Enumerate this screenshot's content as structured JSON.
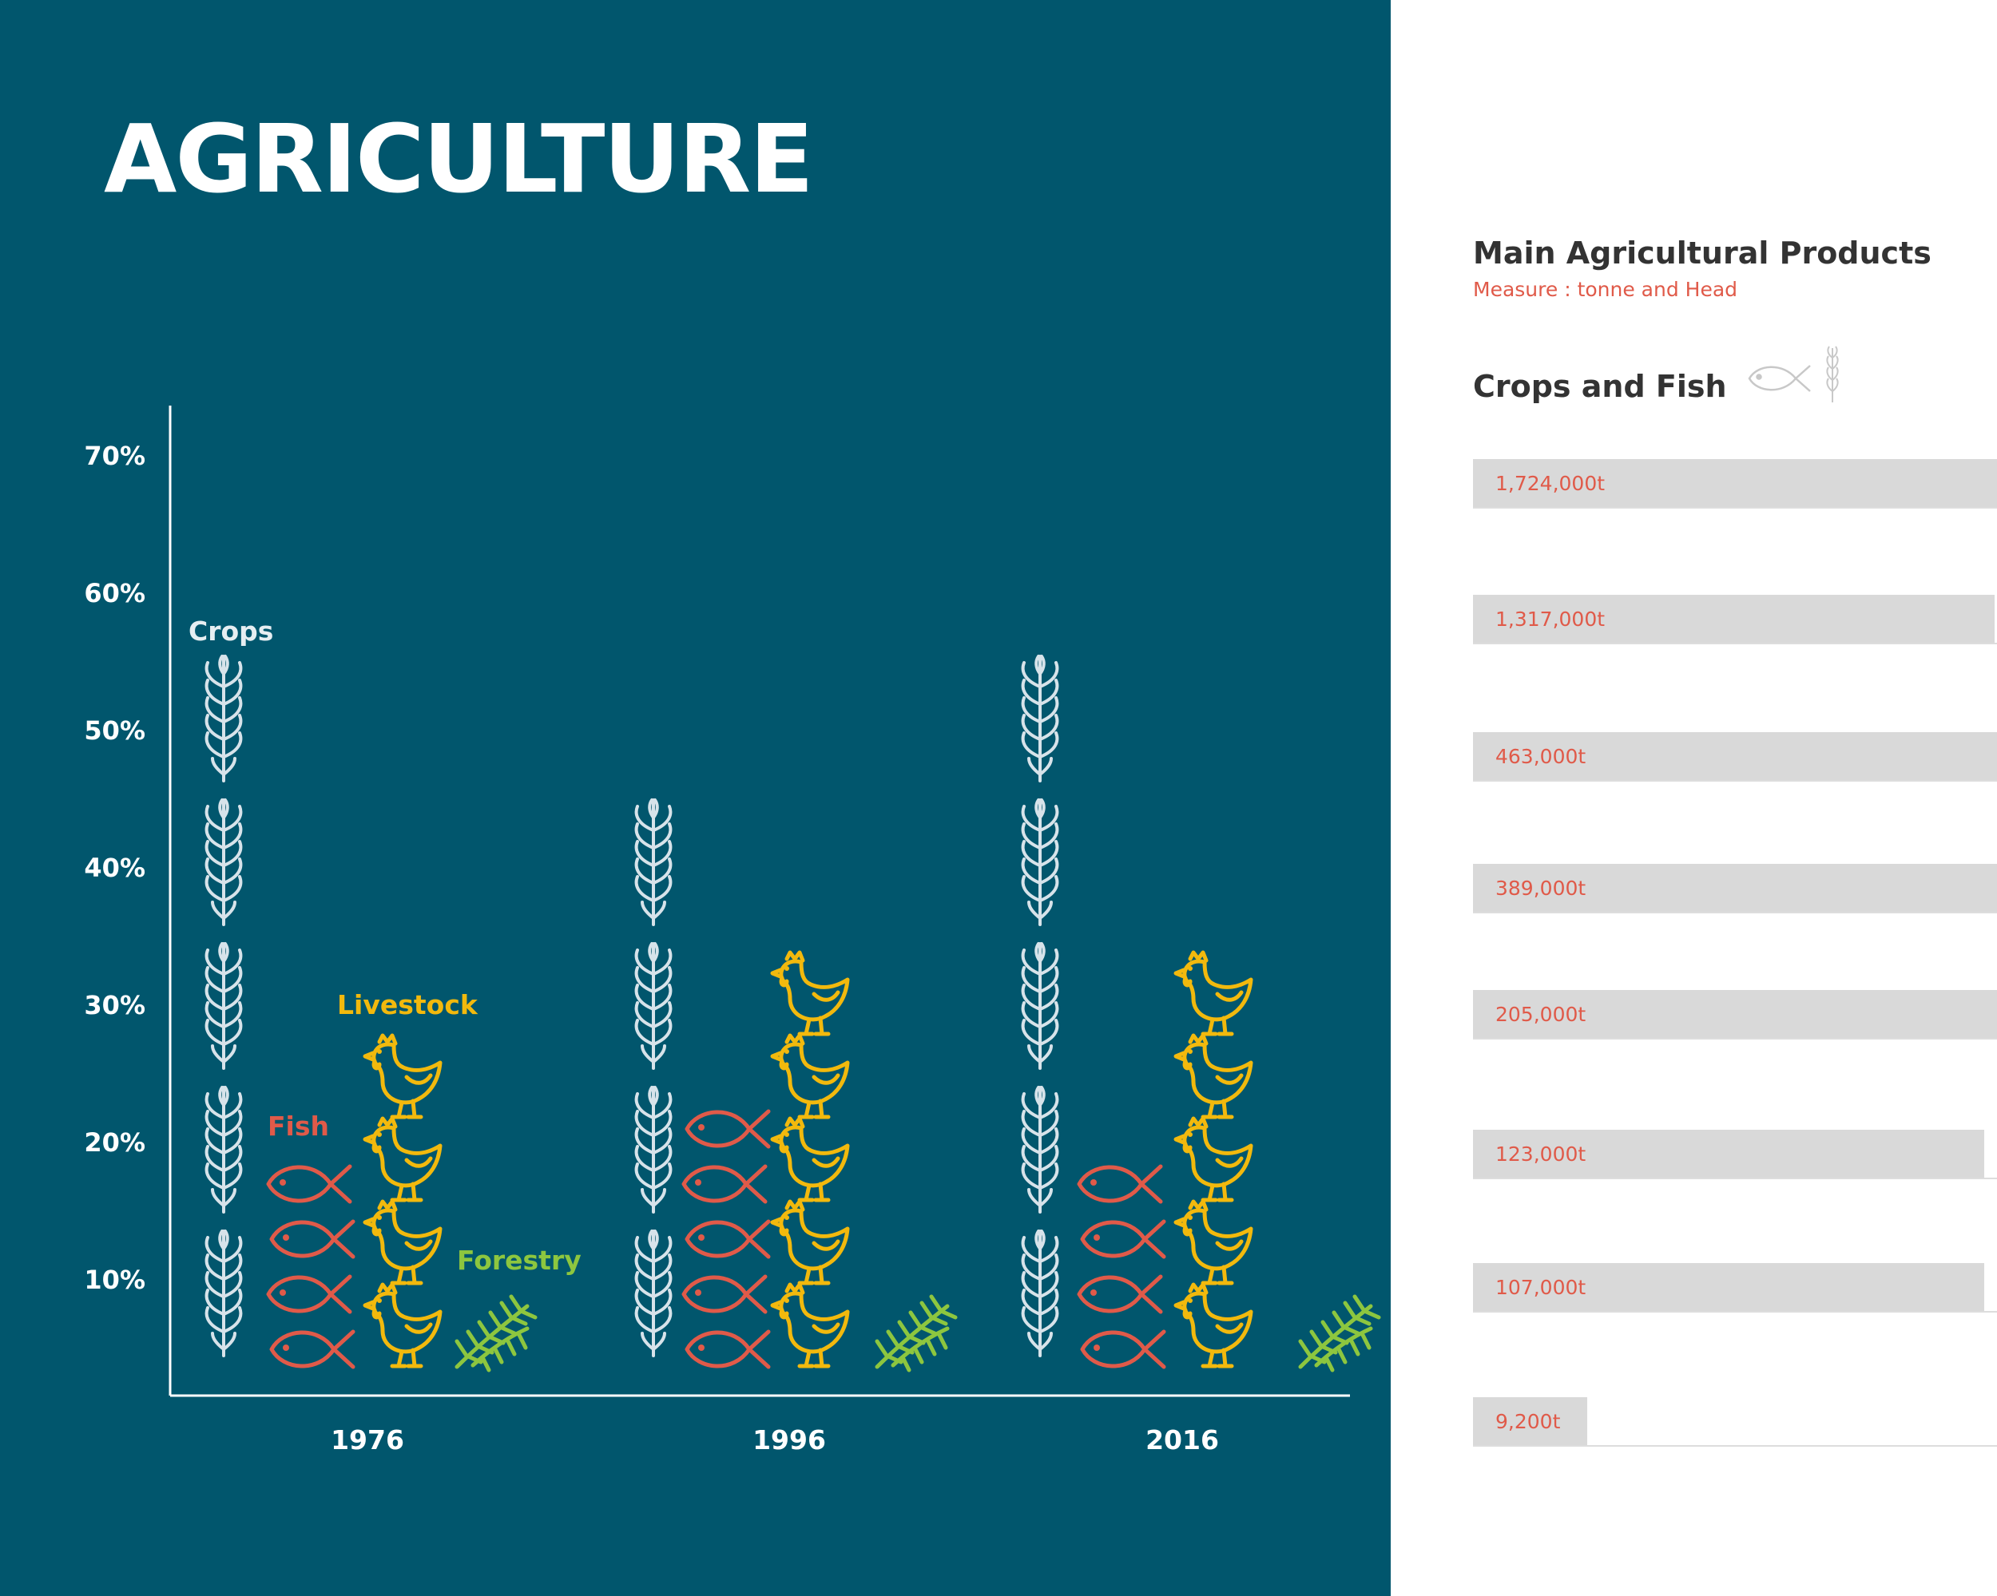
{
  "title": "AGRICULTURE",
  "colors": {
    "background": "#01566d",
    "crops": "#d7e3ea",
    "fish": "#e05a49",
    "livestock": "#f2b90d",
    "forestry": "#8dc63f",
    "axis": "#ffffff"
  },
  "chart_data": {
    "type": "bar",
    "style": "pictogram",
    "categories": [
      "1976",
      "1996",
      "2016"
    ],
    "y_ticks": [
      "10%",
      "20%",
      "30%",
      "40%",
      "50%",
      "60%",
      "70%"
    ],
    "ylim": [
      0,
      70
    ],
    "series": [
      {
        "name": "Crops",
        "icon": "wheat-icon",
        "values": [
          50,
          40,
          50
        ]
      },
      {
        "name": "Fish",
        "icon": "fish-icon",
        "values": [
          20,
          25,
          20
        ]
      },
      {
        "name": "Livestock",
        "icon": "chicken-icon",
        "values": [
          25,
          30,
          30
        ]
      },
      {
        "name": "Forestry",
        "icon": "forestry-icon",
        "values": [
          5,
          5,
          5
        ]
      }
    ],
    "icon_counts": {
      "Crops": [
        5,
        4,
        5
      ],
      "Fish": [
        4,
        5,
        4
      ],
      "Livestock": [
        4,
        5,
        5
      ],
      "Forestry": [
        1,
        1,
        1
      ]
    }
  },
  "side_panel": {
    "title": "Main Agricultural Products",
    "subtitle": "Measure : tonne and Head",
    "section_title": "Crops and Fish",
    "section_icons": [
      "fish-icon",
      "wheat-icon"
    ],
    "bars": [
      {
        "label": "1,724,000t",
        "value": 1724000
      },
      {
        "label": "1,317,000t",
        "value": 1317000
      },
      {
        "label": "463,000t",
        "value": 463000
      },
      {
        "label": "389,000t",
        "value": 389000
      },
      {
        "label": "205,000t",
        "value": 205000
      },
      {
        "label": "123,000t",
        "value": 123000
      },
      {
        "label": "107,000t",
        "value": 107000
      },
      {
        "label": "9,200t",
        "value": 9200
      }
    ]
  }
}
